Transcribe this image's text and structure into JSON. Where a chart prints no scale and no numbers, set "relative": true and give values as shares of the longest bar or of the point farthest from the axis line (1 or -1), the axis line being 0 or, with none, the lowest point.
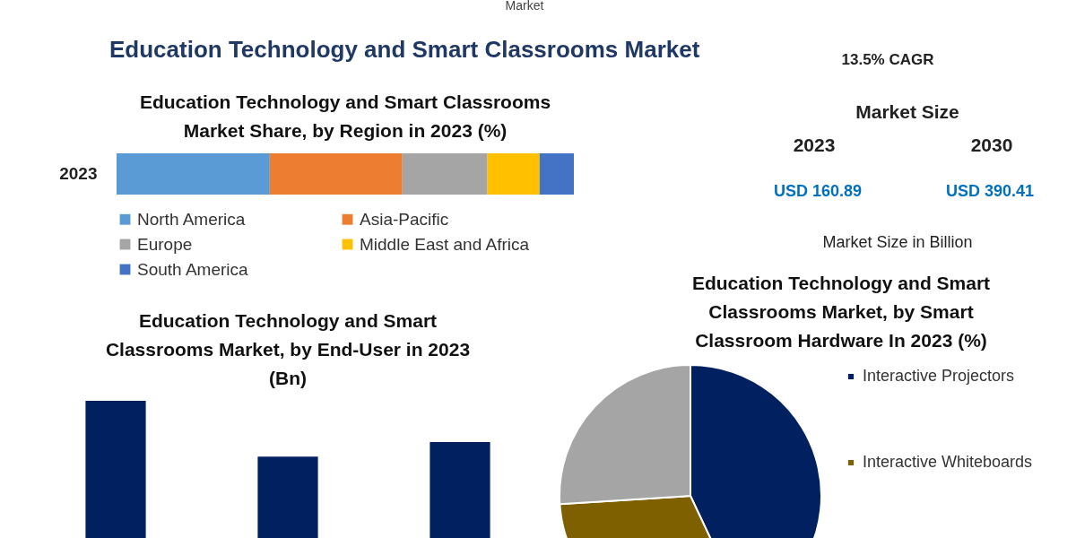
{
  "chart_data": [
    {
      "type": "other",
      "title": "Education Technology and Smart Classrooms Market",
      "annotations": [
        "Market",
        "13.5% CAGR",
        "Market Size",
        "2023",
        "2030",
        "USD 160.89",
        "USD 390.41",
        "Market Size in Billion"
      ]
    },
    {
      "type": "bar",
      "title": "Education Technology and Smart Classrooms Market Share, by Region in 2023 (%)",
      "orientation": "horizontal",
      "stacked": true,
      "relative": true,
      "legend": "bottom",
      "categories": [
        "2023"
      ],
      "series": [
        {
          "name": "North America",
          "color": "#5b9bd5",
          "values": [
            0.335
          ]
        },
        {
          "name": "Asia-Pacific",
          "color": "#ed7d31",
          "values": [
            0.29
          ]
        },
        {
          "name": "Europe",
          "color": "#a5a5a5",
          "values": [
            0.186
          ]
        },
        {
          "name": "Middle East and Africa",
          "color": "#ffc000",
          "values": [
            0.114
          ]
        },
        {
          "name": "South America",
          "color": "#4472c4",
          "values": [
            0.075
          ]
        }
      ]
    },
    {
      "type": "bar",
      "title": "Education Technology and Smart Classrooms Market, by End-User in 2023 (Bn)",
      "relative": true,
      "categories": [
        null,
        null,
        null
      ],
      "values": [
        1,
        0.62,
        0.72
      ],
      "color": "#002060"
    },
    {
      "type": "pie",
      "title": "Education Technology and Smart Classrooms Market, by Smart Classroom Hardware In 2023 (%)",
      "legend": "right",
      "categories": [
        "Interactive Projectors",
        "Interactive Whiteboards",
        null
      ],
      "values": [
        43,
        31,
        26
      ],
      "colors": [
        "#002060",
        "#7f6000",
        "#a5a5a5"
      ]
    }
  ]
}
